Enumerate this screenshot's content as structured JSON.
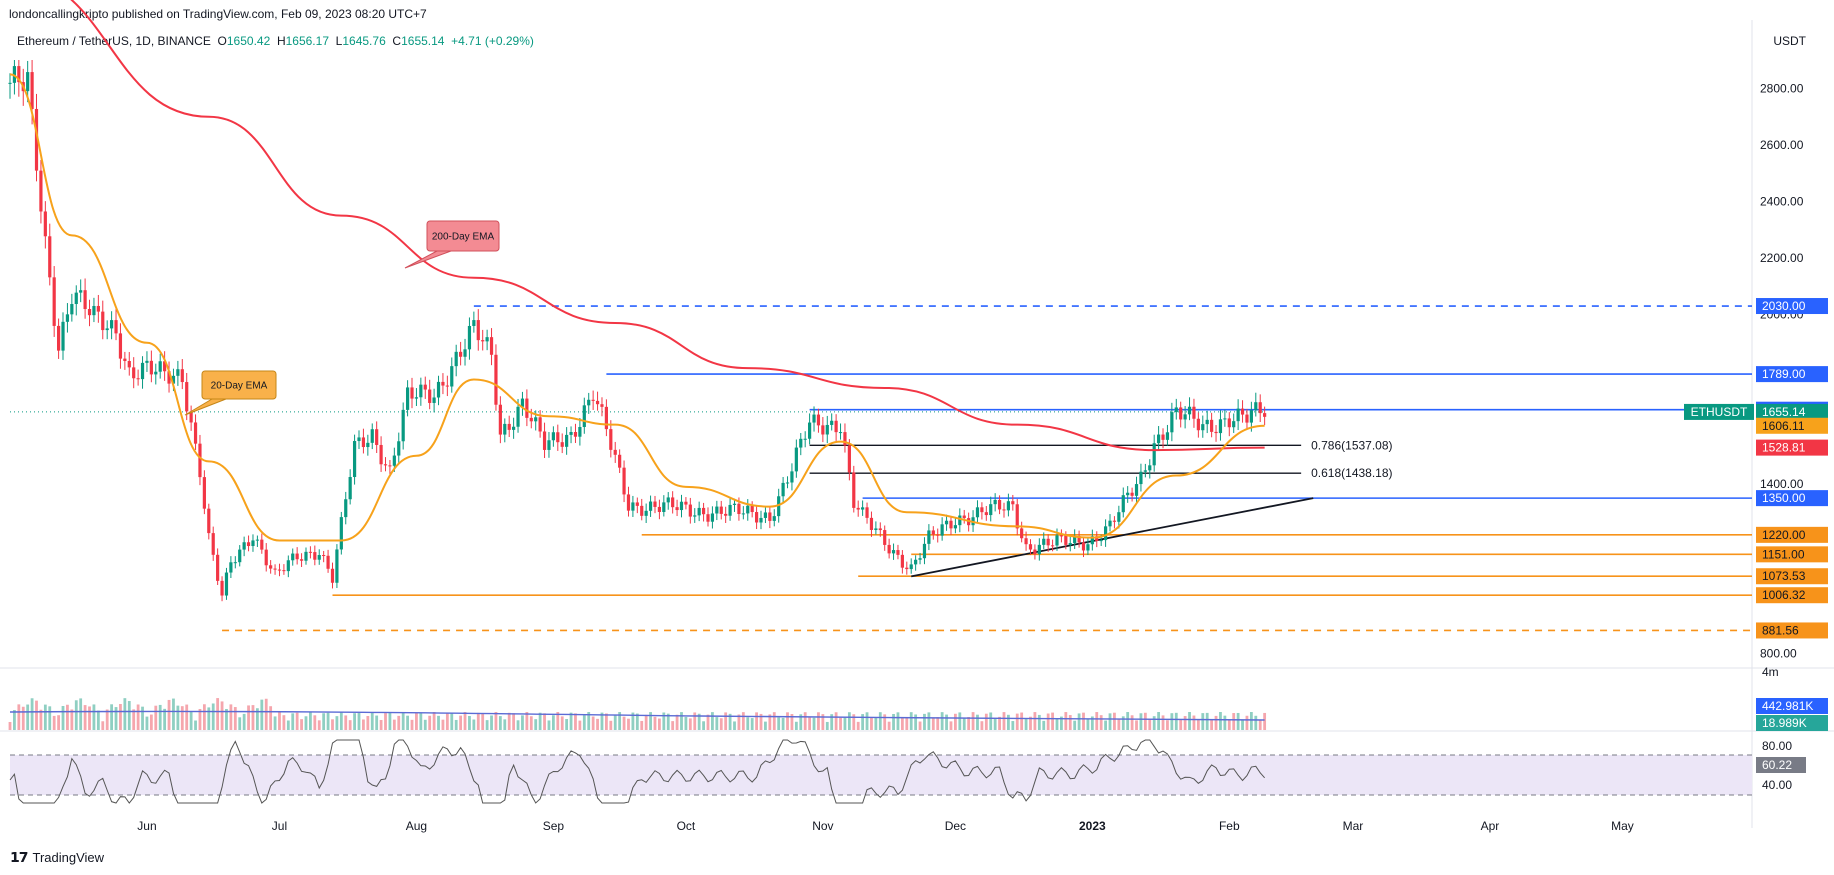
{
  "header": {
    "publisher": "londoncallingkripto published on TradingView.com, Feb 09, 2023 08:20 UTC+7"
  },
  "symbol_bar": {
    "name": "Ethereum / TetherUS, 1D, BINANCE",
    "o_label": "O",
    "o": "1650.42",
    "h_label": "H",
    "h": "1656.17",
    "l_label": "L",
    "l": "1645.76",
    "c_label": "C",
    "c": "1655.14",
    "change": "+4.71 (+0.29%)"
  },
  "price_axis": {
    "currency": "USDT",
    "ticks": [
      "2800.00",
      "2600.00",
      "2400.00",
      "2200.00",
      "2000.00",
      "1400.00",
      "800.00"
    ]
  },
  "time_axis": {
    "labels": [
      "Jun",
      "Jul",
      "Aug",
      "Sep",
      "Oct",
      "Nov",
      "Dec",
      "2023",
      "Feb",
      "Mar",
      "Apr",
      "May"
    ]
  },
  "footer": {
    "brand": "TradingView"
  },
  "colors": {
    "up": "#089981",
    "down": "#f23645",
    "ema20": "#f7a21b",
    "ema200": "#f23645",
    "level_blue": "#2962ff",
    "level_orange": "#f7931a",
    "rsi_line": "#555555",
    "rsi_band": "#ece6f7"
  },
  "chart_data": {
    "type": "candlestick",
    "title": "Ethereum / TetherUS, 1D, BINANCE",
    "ylabel": "USDT",
    "ylim": [
      760,
      2950
    ],
    "x_range": [
      "2022-05-01",
      "2023-05-31"
    ],
    "closes": [
      {
        "date": "2022-05-01",
        "close": 2820
      },
      {
        "date": "2022-05-05",
        "close": 2800
      },
      {
        "date": "2022-05-09",
        "close": 2250
      },
      {
        "date": "2022-05-12",
        "close": 1900
      },
      {
        "date": "2022-05-15",
        "close": 2080
      },
      {
        "date": "2022-05-20",
        "close": 1980
      },
      {
        "date": "2022-05-25",
        "close": 1950
      },
      {
        "date": "2022-05-28",
        "close": 1800
      },
      {
        "date": "2022-06-01",
        "close": 1800
      },
      {
        "date": "2022-06-05",
        "close": 1780
      },
      {
        "date": "2022-06-09",
        "close": 1790
      },
      {
        "date": "2022-06-13",
        "close": 1450
      },
      {
        "date": "2022-06-15",
        "close": 1200
      },
      {
        "date": "2022-06-18",
        "close": 995
      },
      {
        "date": "2022-06-20",
        "close": 1120
      },
      {
        "date": "2022-06-25",
        "close": 1230
      },
      {
        "date": "2022-06-30",
        "close": 1070
      },
      {
        "date": "2022-07-05",
        "close": 1140
      },
      {
        "date": "2022-07-10",
        "close": 1170
      },
      {
        "date": "2022-07-13",
        "close": 1070
      },
      {
        "date": "2022-07-18",
        "close": 1520
      },
      {
        "date": "2022-07-22",
        "close": 1580
      },
      {
        "date": "2022-07-26",
        "close": 1450
      },
      {
        "date": "2022-07-30",
        "close": 1700
      },
      {
        "date": "2022-08-05",
        "close": 1720
      },
      {
        "date": "2022-08-10",
        "close": 1850
      },
      {
        "date": "2022-08-14",
        "close": 1940
      },
      {
        "date": "2022-08-18",
        "close": 1850
      },
      {
        "date": "2022-08-20",
        "close": 1580
      },
      {
        "date": "2022-08-25",
        "close": 1690
      },
      {
        "date": "2022-08-30",
        "close": 1530
      },
      {
        "date": "2022-09-05",
        "close": 1580
      },
      {
        "date": "2022-09-10",
        "close": 1720
      },
      {
        "date": "2022-09-13",
        "close": 1580
      },
      {
        "date": "2022-09-18",
        "close": 1330
      },
      {
        "date": "2022-09-24",
        "close": 1320
      },
      {
        "date": "2022-10-01",
        "close": 1310
      },
      {
        "date": "2022-10-10",
        "close": 1300
      },
      {
        "date": "2022-10-20",
        "close": 1290
      },
      {
        "date": "2022-10-25",
        "close": 1450
      },
      {
        "date": "2022-10-29",
        "close": 1610
      },
      {
        "date": "2022-11-05",
        "close": 1620
      },
      {
        "date": "2022-11-08",
        "close": 1330
      },
      {
        "date": "2022-11-10",
        "close": 1280
      },
      {
        "date": "2022-11-21",
        "close": 1100
      },
      {
        "date": "2022-11-25",
        "close": 1200
      },
      {
        "date": "2022-12-01",
        "close": 1280
      },
      {
        "date": "2022-12-14",
        "close": 1320
      },
      {
        "date": "2022-12-17",
        "close": 1180
      },
      {
        "date": "2022-12-31",
        "close": 1198
      },
      {
        "date": "2023-01-05",
        "close": 1250
      },
      {
        "date": "2023-01-12",
        "close": 1420
      },
      {
        "date": "2023-01-15",
        "close": 1550
      },
      {
        "date": "2023-01-20",
        "close": 1650
      },
      {
        "date": "2023-01-26",
        "close": 1600
      },
      {
        "date": "2023-02-01",
        "close": 1640
      },
      {
        "date": "2023-02-05",
        "close": 1630
      },
      {
        "date": "2023-02-09",
        "close": 1655.14
      }
    ],
    "ema20_points": [
      {
        "date": "2022-05-01",
        "value": 2850
      },
      {
        "date": "2022-05-15",
        "value": 2280
      },
      {
        "date": "2022-06-01",
        "value": 1900
      },
      {
        "date": "2022-06-15",
        "value": 1480
      },
      {
        "date": "2022-07-01",
        "value": 1200
      },
      {
        "date": "2022-07-15",
        "value": 1200
      },
      {
        "date": "2022-08-01",
        "value": 1500
      },
      {
        "date": "2022-08-14",
        "value": 1770
      },
      {
        "date": "2022-08-31",
        "value": 1640
      },
      {
        "date": "2022-09-15",
        "value": 1610
      },
      {
        "date": "2022-10-01",
        "value": 1390
      },
      {
        "date": "2022-10-20",
        "value": 1320
      },
      {
        "date": "2022-11-05",
        "value": 1550
      },
      {
        "date": "2022-11-20",
        "value": 1300
      },
      {
        "date": "2022-12-15",
        "value": 1250
      },
      {
        "date": "2023-01-01",
        "value": 1210
      },
      {
        "date": "2023-01-20",
        "value": 1430
      },
      {
        "date": "2023-02-09",
        "value": 1606.11
      }
    ],
    "ema200_points": [
      {
        "date": "2022-05-01",
        "value": 3200
      },
      {
        "date": "2022-06-15",
        "value": 2700
      },
      {
        "date": "2022-07-15",
        "value": 2350
      },
      {
        "date": "2022-08-14",
        "value": 2130
      },
      {
        "date": "2022-09-15",
        "value": 1970
      },
      {
        "date": "2022-10-15",
        "value": 1810
      },
      {
        "date": "2022-11-15",
        "value": 1740
      },
      {
        "date": "2022-12-15",
        "value": 1610
      },
      {
        "date": "2023-01-15",
        "value": 1520
      },
      {
        "date": "2023-02-09",
        "value": 1528.81
      }
    ],
    "indicator_labels": {
      "ema20_note": "20-Day EMA",
      "ema200_note": "200-Day EMA"
    },
    "horizontal_levels": [
      {
        "value": 2030,
        "label": "2030.00",
        "color": "#2962ff",
        "style": "dashed",
        "start": "2022-08-14"
      },
      {
        "value": 1789,
        "label": "1789.00",
        "color": "#2962ff",
        "style": "solid",
        "start": "2022-09-13"
      },
      {
        "value": 1663,
        "label": "1663.00",
        "color": "#2962ff",
        "style": "solid",
        "start": "2022-10-29"
      },
      {
        "value": 1350,
        "label": "1350.00",
        "color": "#2962ff",
        "style": "solid",
        "start": "2022-11-10"
      },
      {
        "value": 1220,
        "label": "1220.00",
        "color": "#f7931a",
        "style": "solid",
        "start": "2022-09-21"
      },
      {
        "value": 1151,
        "label": "1151.00",
        "color": "#f7931a",
        "style": "solid",
        "start": "2022-11-21"
      },
      {
        "value": 1073.53,
        "label": "1073.53",
        "color": "#f7931a",
        "style": "solid",
        "start": "2022-11-09"
      },
      {
        "value": 1006.32,
        "label": "1006.32",
        "color": "#f7931a",
        "style": "solid",
        "start": "2022-07-13"
      },
      {
        "value": 881.56,
        "label": "881.56",
        "color": "#f7931a",
        "style": "dashed",
        "start": "2022-06-18"
      }
    ],
    "price_tags": [
      {
        "value": 1655.14,
        "label": "1655.14",
        "color": "#089981",
        "symbol": "ETHUSDT"
      },
      {
        "value": 1606.11,
        "label": "1606.11",
        "color": "#f7a21b"
      },
      {
        "value": 1528.81,
        "label": "1528.81",
        "color": "#f23645"
      }
    ],
    "fibonacci": [
      {
        "ratio": "0.786",
        "value": 1537.08,
        "label": "0.786(1537.08)",
        "start": "2022-10-29",
        "end": "2023-02-15"
      },
      {
        "ratio": "0.618",
        "value": 1438.18,
        "label": "0.618(1438.18)",
        "start": "2022-10-29",
        "end": "2023-02-15"
      }
    ],
    "trendline": {
      "start": {
        "date": "2022-11-21",
        "value": 1073
      },
      "end": {
        "date": "2023-02-20",
        "value": 1350
      }
    },
    "volume": {
      "label_vol": "442.981K",
      "label_ma": "18.989K",
      "axis_label": "4m"
    },
    "rsi": {
      "value": "60.22",
      "levels": [
        "80.00",
        "40.00"
      ],
      "upper": 70,
      "lower": 30
    }
  }
}
